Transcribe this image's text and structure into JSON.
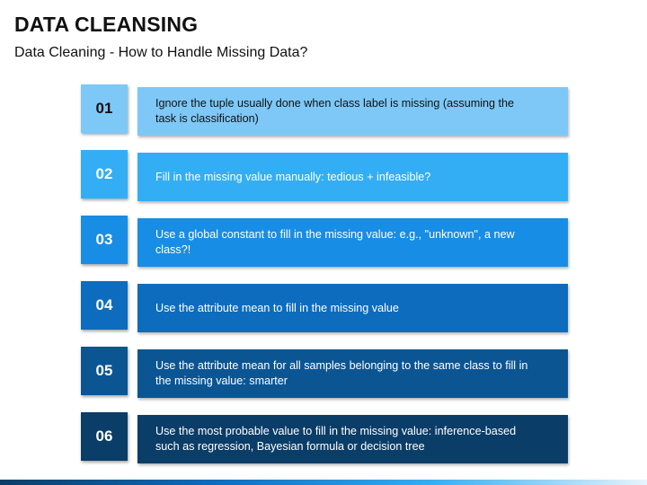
{
  "header": {
    "title": "DATA CLEANSING",
    "subtitle": "Data Cleaning - How to Handle Missing Data?"
  },
  "items": [
    {
      "number": "01",
      "text": "Ignore the tuple usually done when class label is missing (assuming the task is classification)",
      "color": "#7EC8F8",
      "text_color": "#111111",
      "num_color": "#111111"
    },
    {
      "number": "02",
      "text": "Fill in the missing value manually: tedious + infeasible?",
      "color": "#33AEF4",
      "text_color": "#ffffff",
      "num_color": "#33AEF4"
    },
    {
      "number": "03",
      "text": "Use a global constant to fill in the missing value: e.g., \"unknown\", a new class?!",
      "color": "#178DE6",
      "text_color": "#ffffff",
      "num_color": "#178DE6"
    },
    {
      "number": "04",
      "text": "Use the attribute mean to fill in the missing value",
      "color": "#0D6CBE",
      "text_color": "#ffffff",
      "num_color": "#0D6CBE"
    },
    {
      "number": "05",
      "text": "Use the attribute mean for all samples belonging to the same class to fill in the missing value: smarter",
      "color": "#0B5593",
      "text_color": "#ffffff",
      "num_color": "#0B5593"
    },
    {
      "number": "06",
      "text": "Use the most probable value to fill in the missing value: inference-based such as regression, Bayesian formula or decision tree",
      "color": "#0A3D68",
      "text_color": "#ffffff",
      "num_color": "#0A3D68"
    }
  ],
  "footer": {
    "band_colors": [
      "#0A3D68",
      "#0D6CBE",
      "#33AEF4",
      "#e8f4fd"
    ]
  }
}
